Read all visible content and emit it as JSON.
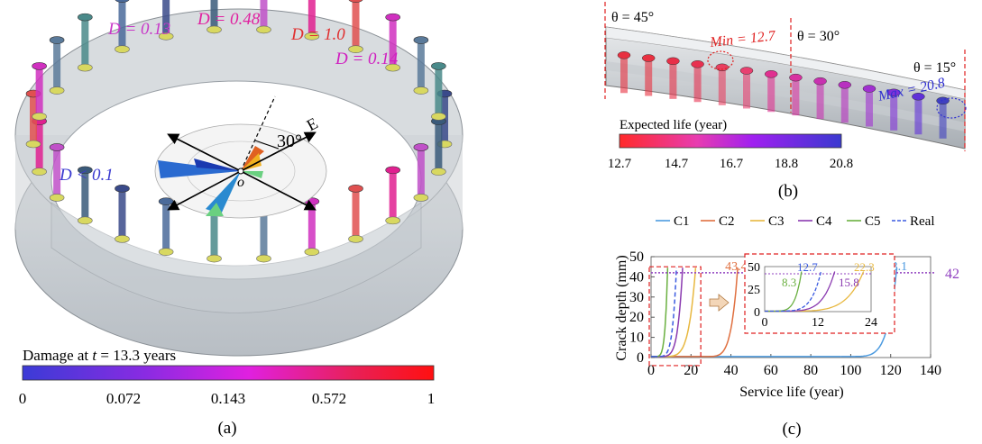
{
  "panel_a": {
    "caption": "(a)",
    "labels": {
      "d1": "D = 0.13",
      "d2": "D = 0.48",
      "d3": "D = 1.0",
      "d4": "D = 0.14",
      "d5": "D < 0.1",
      "angle": "30°",
      "dir_e": "E",
      "origin": "o"
    },
    "colorbar": {
      "title_prefix": "Damage at ",
      "title_var": "t",
      "title_suffix": " = 13.3 years",
      "ticks": [
        "0",
        "0.072",
        "0.143",
        "0.572",
        "1"
      ],
      "colors": [
        "#3b3bd6",
        "#8a2be2",
        "#e020e0",
        "#e8205a",
        "#ff1010"
      ]
    },
    "bolt_colors": [
      "#3a4a8a",
      "#3a5a7a",
      "#c050c8",
      "#e02090",
      "#e05050",
      "#d030c0",
      "#5a7a9a",
      "#4a8a8a",
      "#4a6a9a"
    ]
  },
  "panel_b": {
    "caption": "(b)",
    "labels": {
      "theta1": "θ = 45°",
      "theta2": "θ = 30°",
      "theta3": "θ = 15°",
      "min": "Min = 12.7",
      "max": "Max = 20.8"
    },
    "colorbar": {
      "title": "Expected life (year)",
      "ticks": [
        "12.7",
        "14.7",
        "16.7",
        "18.8",
        "20.8"
      ],
      "colors": [
        "#ff2a2a",
        "#e83cb0",
        "#a020f0",
        "#5a3ae0",
        "#3a3ad0"
      ]
    }
  },
  "panel_c": {
    "caption": "(c)",
    "chart_data": {
      "type": "line",
      "xlabel": "Service life (year)",
      "ylabel": "Crack depth (mm)",
      "xlim": [
        0,
        140
      ],
      "ylim": [
        0,
        50
      ],
      "xticks": [
        "0",
        "20",
        "40",
        "60",
        "80",
        "100",
        "120",
        "140"
      ],
      "yticks": [
        "0",
        "10",
        "20",
        "30",
        "40",
        "50"
      ],
      "legend_position": "top",
      "series": [
        {
          "name": "C1",
          "color": "#4d9be0",
          "dash": false,
          "end_life": 123.1
        },
        {
          "name": "C2",
          "color": "#e07040",
          "dash": false,
          "end_life": 43.4
        },
        {
          "name": "C3",
          "color": "#e8b840",
          "dash": false,
          "end_life": 22.3
        },
        {
          "name": "C4",
          "color": "#8a3ab0",
          "dash": false,
          "end_life": 15.8
        },
        {
          "name": "C5",
          "color": "#6ab040",
          "dash": false,
          "end_life": 8.3
        },
        {
          "name": "Real",
          "color": "#3a5ae0",
          "dash": true,
          "end_life": 12.7
        }
      ],
      "threshold": {
        "value": 42,
        "label": "42",
        "color": "#9040c0"
      },
      "annotations": [
        {
          "text": "43.4",
          "color": "#e07040"
        },
        {
          "text": "123.1",
          "color": "#4d9be0"
        }
      ],
      "inset": {
        "xlim": [
          0,
          24
        ],
        "ylim": [
          0,
          50
        ],
        "xticks": [
          "0",
          "12",
          "24"
        ],
        "yticks": [
          "0",
          "25",
          "50"
        ],
        "labels": [
          {
            "text": "12.7",
            "color": "#3a5ae0"
          },
          {
            "text": "22.3",
            "color": "#e8b840"
          },
          {
            "text": "8.3",
            "color": "#6ab040"
          },
          {
            "text": "15.8",
            "color": "#8a3ab0"
          }
        ]
      }
    }
  }
}
